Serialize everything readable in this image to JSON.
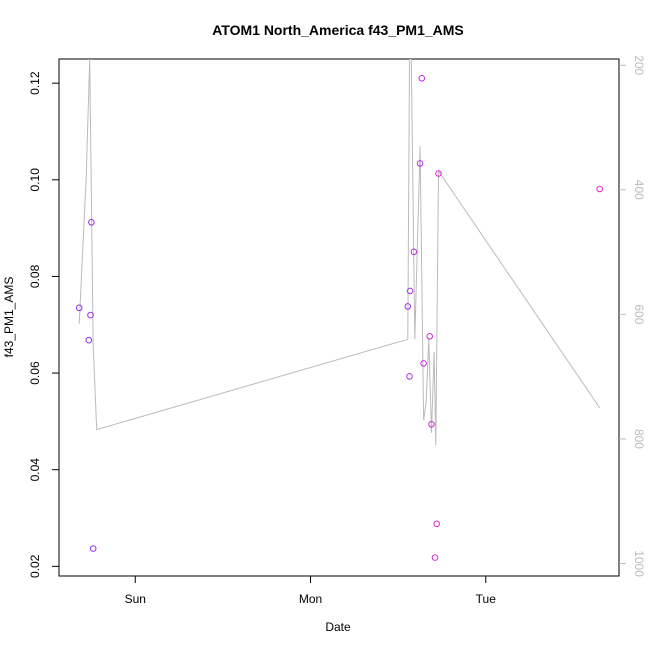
{
  "chart_data": {
    "type": "scatter",
    "title": "ATOM1 North_America f43_PM1_AMS",
    "xlabel": "Date",
    "ylabel": "f43_PM1_AMS",
    "x_ticks": [
      {
        "label": "Sun",
        "value": 1.0
      },
      {
        "label": "Mon",
        "value": 2.0
      },
      {
        "label": "Tue",
        "value": 3.0
      }
    ],
    "xlim": [
      0.565,
      3.76
    ],
    "ylim": [
      0.018,
      0.125
    ],
    "y_ticks": [
      0.02,
      0.04,
      0.06,
      0.08,
      0.1,
      0.12
    ],
    "y_tick_labels": [
      "0.02",
      "0.04",
      "0.06",
      "0.08",
      "0.10",
      "0.12"
    ],
    "y2_lim": [
      1020,
      190
    ],
    "y2_ticks": [
      200,
      400,
      600,
      800,
      1000
    ],
    "y2_tick_labels": [
      "200",
      "400",
      "600",
      "800",
      "1000"
    ],
    "grid": false,
    "colors": {
      "points_start": "#8833ee",
      "points_end": "#ee22dd",
      "line": "#bbbbbb",
      "axis": "#000000",
      "right_axis": "#bbbbbb"
    },
    "points": [
      {
        "x": 0.68,
        "y": 0.0735
      },
      {
        "x": 0.735,
        "y": 0.0668
      },
      {
        "x": 0.745,
        "y": 0.072
      },
      {
        "x": 0.75,
        "y": 0.0912
      },
      {
        "x": 0.76,
        "y": 0.0237
      },
      {
        "x": 2.555,
        "y": 0.0738
      },
      {
        "x": 2.565,
        "y": 0.0593
      },
      {
        "x": 2.568,
        "y": 0.077
      },
      {
        "x": 2.59,
        "y": 0.0851
      },
      {
        "x": 2.625,
        "y": 0.1034
      },
      {
        "x": 2.635,
        "y": 0.121
      },
      {
        "x": 2.645,
        "y": 0.062
      },
      {
        "x": 2.68,
        "y": 0.0676
      },
      {
        "x": 2.69,
        "y": 0.0494
      },
      {
        "x": 2.71,
        "y": 0.0218
      },
      {
        "x": 2.72,
        "y": 0.0288
      },
      {
        "x": 2.73,
        "y": 0.1013
      },
      {
        "x": 3.65,
        "y": 0.0981
      }
    ],
    "secondary_line": [
      {
        "x": 0.68,
        "y2": 615
      },
      {
        "x": 0.72,
        "y2": 380
      },
      {
        "x": 0.74,
        "y2": 190
      },
      {
        "x": 0.76,
        "y2": 650
      },
      {
        "x": 0.78,
        "y2": 785
      },
      {
        "x": 2.555,
        "y2": 640
      },
      {
        "x": 2.565,
        "y2": 190
      },
      {
        "x": 2.575,
        "y2": 190
      },
      {
        "x": 2.595,
        "y2": 640
      },
      {
        "x": 2.625,
        "y2": 330
      },
      {
        "x": 2.645,
        "y2": 770
      },
      {
        "x": 2.66,
        "y2": 740
      },
      {
        "x": 2.675,
        "y2": 640
      },
      {
        "x": 2.69,
        "y2": 790
      },
      {
        "x": 2.705,
        "y2": 660
      },
      {
        "x": 2.715,
        "y2": 810
      },
      {
        "x": 2.73,
        "y2": 370
      },
      {
        "x": 3.65,
        "y2": 750
      }
    ]
  }
}
